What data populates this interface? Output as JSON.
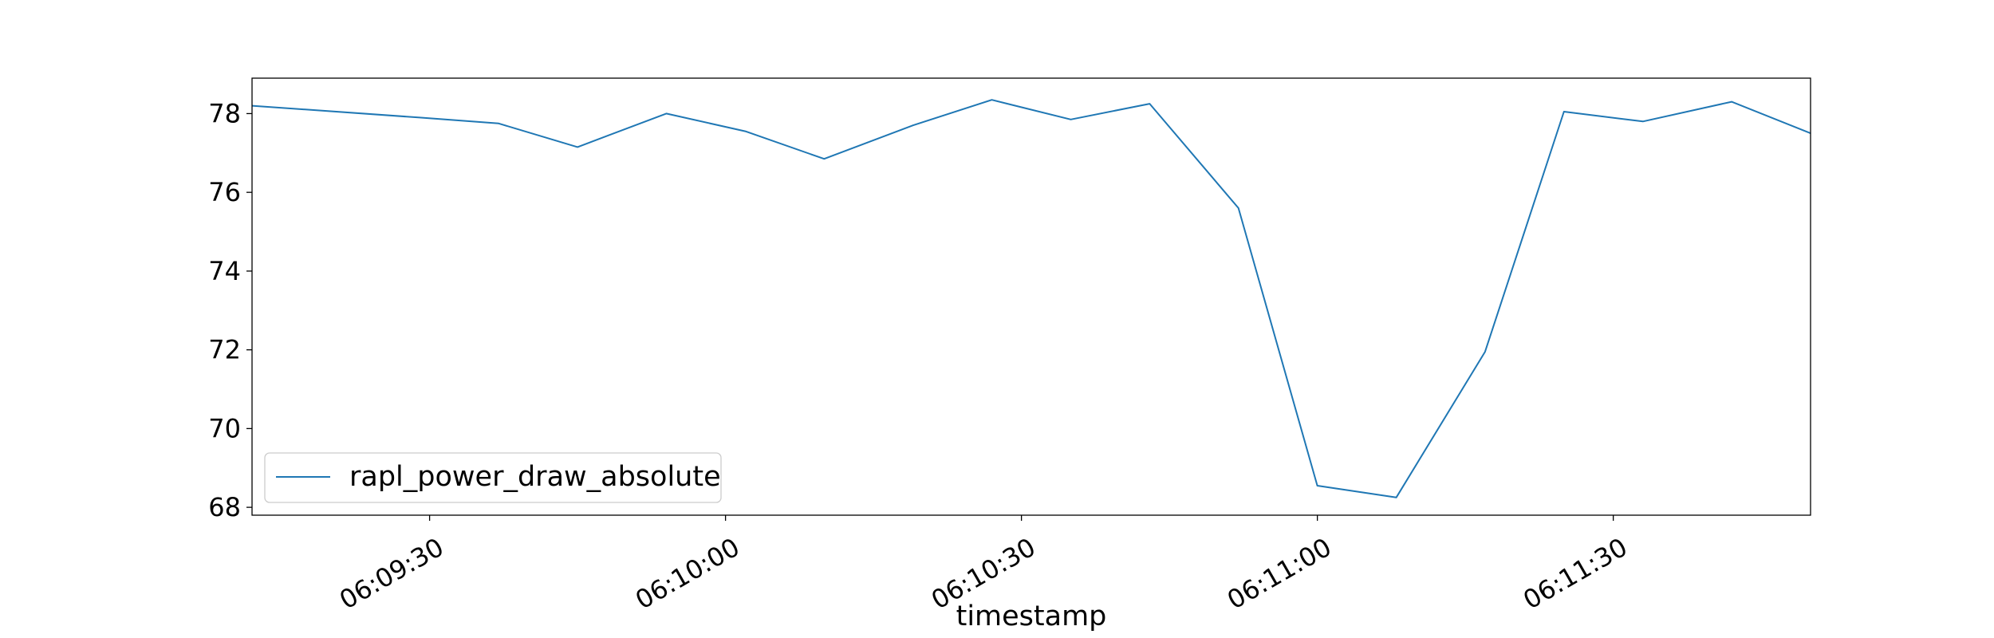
{
  "chart_data": {
    "type": "line",
    "title": "",
    "xlabel": "timestamp",
    "ylabel": "",
    "x_unit": "seconds since 06:09:00",
    "xlim": [
      12,
      170
    ],
    "ylim": [
      67.8,
      78.9
    ],
    "x_ticks": [
      {
        "value": 30,
        "label": "06:09:30"
      },
      {
        "value": 60,
        "label": "06:10:00"
      },
      {
        "value": 90,
        "label": "06:10:30"
      },
      {
        "value": 120,
        "label": "06:11:00"
      },
      {
        "value": 150,
        "label": "06:11:30"
      }
    ],
    "y_ticks": [
      {
        "value": 68,
        "label": "68"
      },
      {
        "value": 70,
        "label": "70"
      },
      {
        "value": 72,
        "label": "72"
      },
      {
        "value": 74,
        "label": "74"
      },
      {
        "value": 76,
        "label": "76"
      },
      {
        "value": 78,
        "label": "78"
      }
    ],
    "grid": false,
    "legend_position": "lower-left",
    "series": [
      {
        "name": "rapl_power_draw_absolute",
        "color": "#1f77b4",
        "x": [
          12,
          29,
          37,
          45,
          54,
          62,
          70,
          79,
          87,
          95,
          103,
          112,
          120,
          128,
          137,
          145,
          153,
          162,
          170
        ],
        "y": [
          78.2,
          77.9,
          77.75,
          77.15,
          78.0,
          77.55,
          76.85,
          77.7,
          78.35,
          77.85,
          78.25,
          75.6,
          68.55,
          68.25,
          71.95,
          78.05,
          77.8,
          78.3,
          77.5
        ]
      }
    ]
  }
}
